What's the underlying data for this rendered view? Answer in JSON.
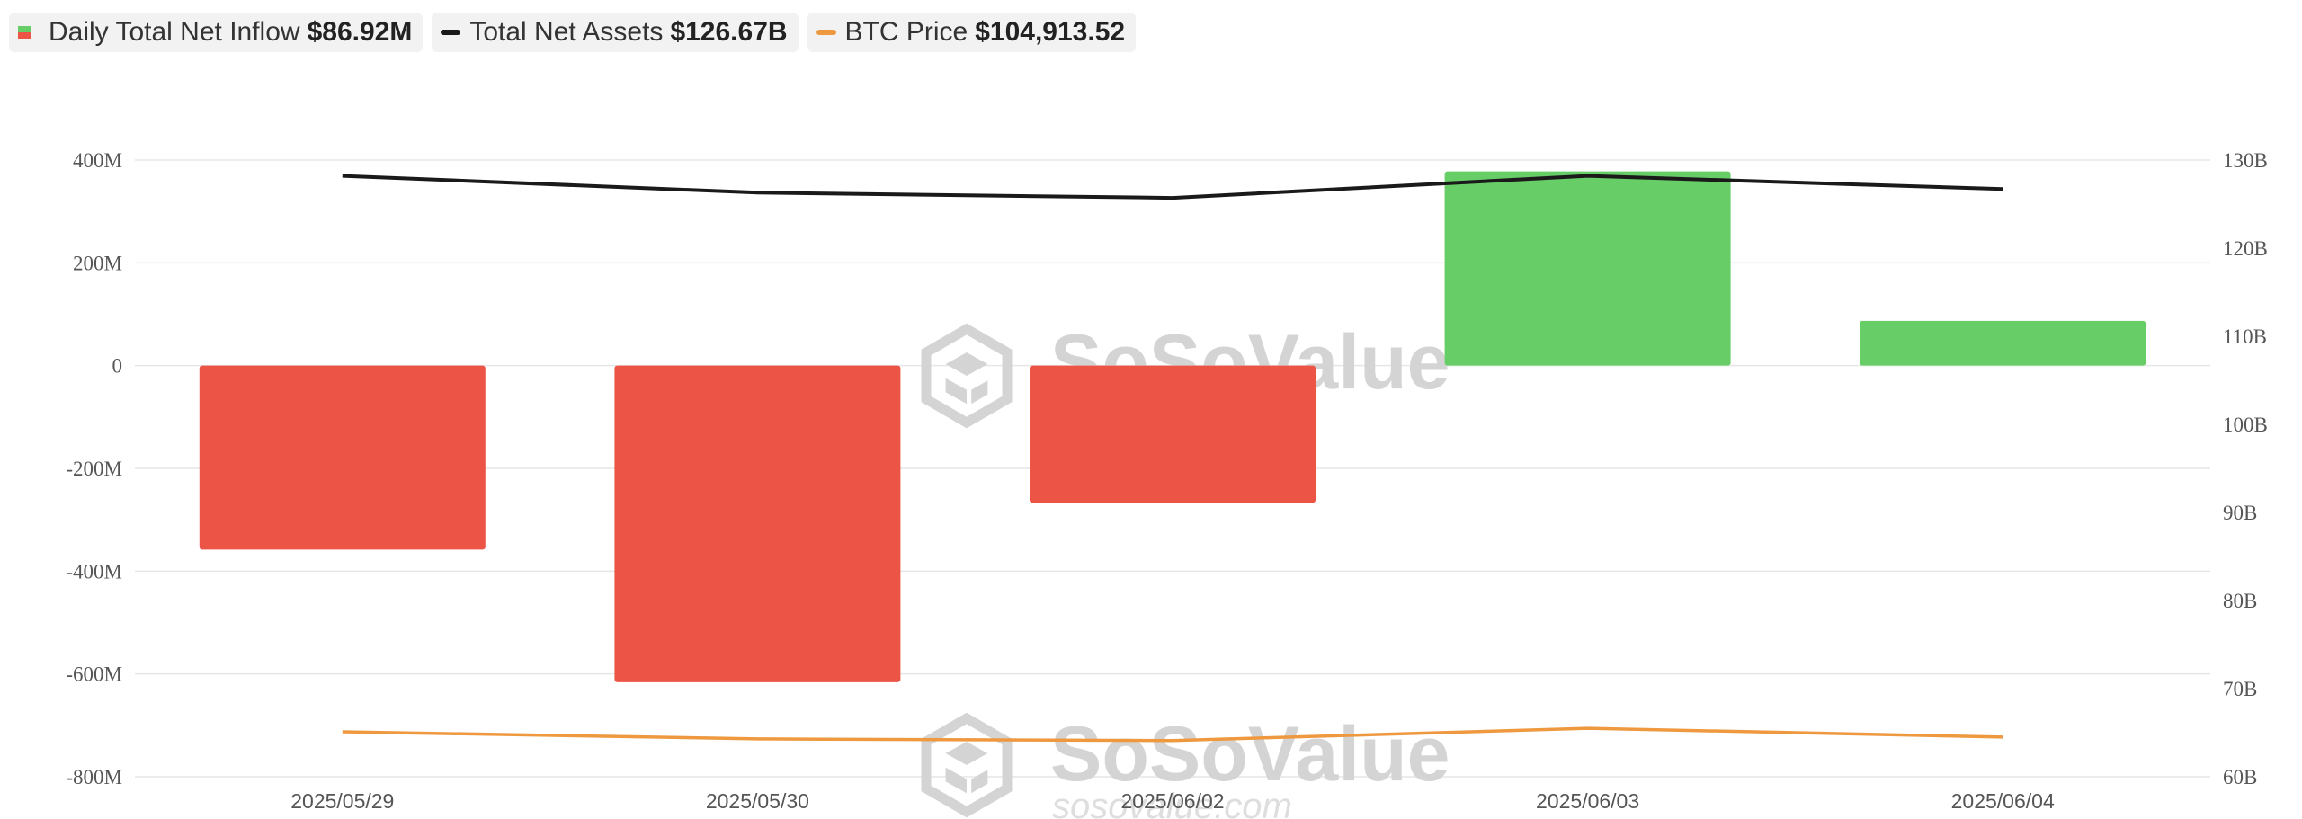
{
  "legend": {
    "inflow": {
      "label": "Daily Total Net Inflow",
      "value": "$86.92M",
      "color_pos": "#67cd67",
      "color_neg": "#ec5446"
    },
    "assets": {
      "label": "Total Net Assets",
      "value": "$126.67B",
      "color": "#1a1a1a"
    },
    "btc": {
      "label": "BTC Price",
      "value": "$104,913.52",
      "color": "#ee9940"
    }
  },
  "watermark": {
    "text": "SoSoValue",
    "sub": "sosovalue.com"
  },
  "chart_data": {
    "type": "bar",
    "categories": [
      "2025/05/29",
      "2025/05/30",
      "2025/06/02",
      "2025/06/03",
      "2025/06/04"
    ],
    "series": [
      {
        "name": "Daily Total Net Inflow",
        "type": "bar",
        "axis": "left",
        "values": [
          -358,
          -616,
          -267,
          378,
          87
        ]
      },
      {
        "name": "Total Net Assets",
        "type": "line",
        "axis": "right",
        "values": [
          128.2,
          126.3,
          125.7,
          128.2,
          126.7
        ]
      },
      {
        "name": "BTC Price",
        "type": "line",
        "axis": "right",
        "values": [
          65.1,
          64.3,
          64.1,
          65.5,
          64.5
        ]
      }
    ],
    "y_left": {
      "min": -800,
      "max": 400,
      "ticks": [
        "400M",
        "200M",
        "0",
        "-200M",
        "-400M",
        "-600M",
        "-800M"
      ]
    },
    "y_right": {
      "min": 60,
      "max": 130,
      "ticks": [
        "130B",
        "120B",
        "110B",
        "100B",
        "90B",
        "80B",
        "70B",
        "60B"
      ]
    },
    "grid": true,
    "legend_position": "top-left"
  }
}
